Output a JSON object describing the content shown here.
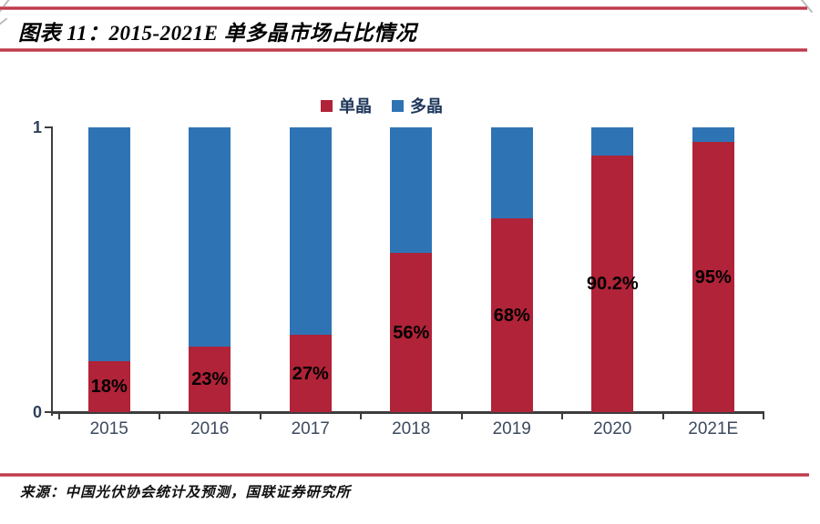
{
  "page": {
    "title": "图表 11：2015-2021E 单多晶市场占比情况",
    "source": "来源：中国光伏协会统计及预测，国联证券研究所"
  },
  "colors": {
    "mono_red": "#b02338",
    "multi_blue": "#2e74b5",
    "rule_red": "#bf3a4b",
    "axis": "#3d3d3d"
  },
  "chart_data": {
    "type": "bar",
    "stacked": true,
    "title": "2015-2021E 单多晶市场占比情况",
    "categories": [
      "2015",
      "2016",
      "2017",
      "2018",
      "2019",
      "2020",
      "2021E"
    ],
    "series": [
      {
        "name": "单晶",
        "color": "#b02338",
        "values": [
          0.18,
          0.23,
          0.27,
          0.56,
          0.68,
          0.902,
          0.95
        ],
        "labels": [
          "18%",
          "23%",
          "27%",
          "56%",
          "68%",
          "90.2%",
          "95%"
        ]
      },
      {
        "name": "多晶",
        "color": "#2e74b5",
        "values": [
          0.82,
          0.77,
          0.73,
          0.44,
          0.32,
          0.098,
          0.05
        ]
      }
    ],
    "ylim": [
      0,
      1
    ],
    "yticks": [
      "0",
      "1"
    ],
    "xlabel": "",
    "ylabel": "",
    "grid": false,
    "legend_position": "top-center",
    "data_label_position": "center-of-red-segment"
  }
}
